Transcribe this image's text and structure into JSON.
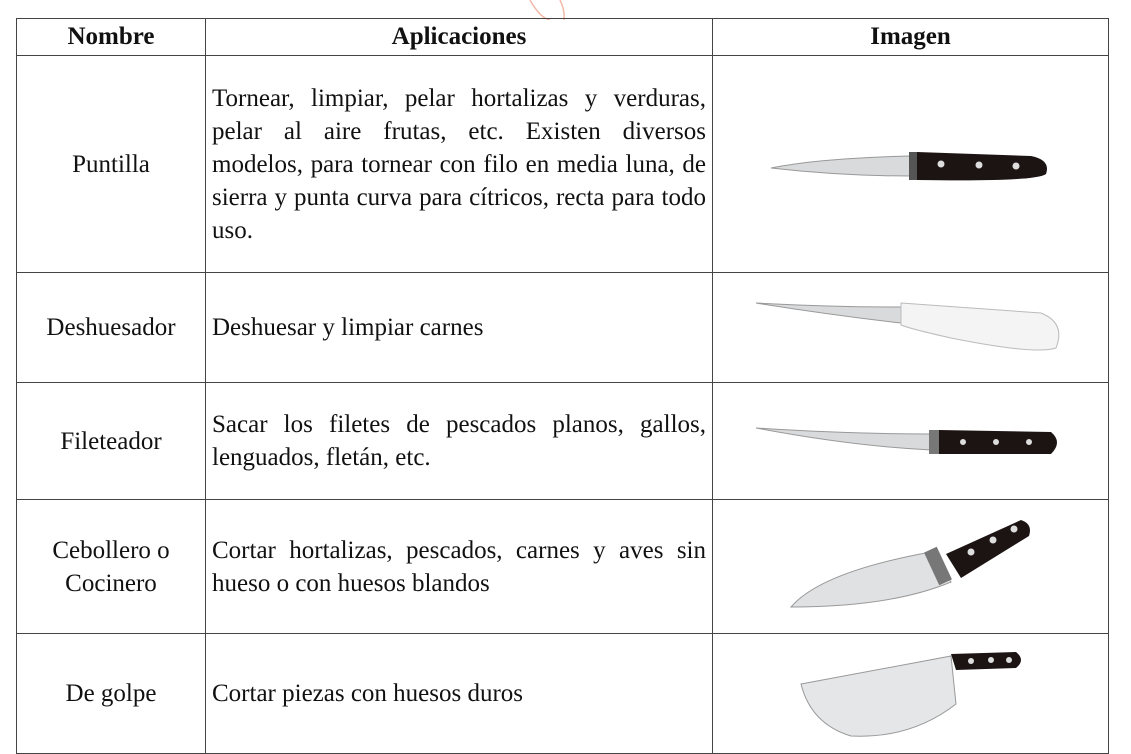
{
  "table": {
    "headers": [
      "Nombre",
      "Aplicaciones",
      "Imagen"
    ],
    "rows": [
      [
        "Puntilla",
        "Tornear, limpiar, pelar hortalizas y verduras, pelar al aire frutas, etc. Existen diversos modelos, para tornear con filo en media luna, de sierra y punta curva para cítricos, recta para todo uso."
      ],
      [
        "Deshuesador",
        "Deshuesar y limpiar carnes"
      ],
      [
        "Fileteador",
        "Sacar los filetes de pescados planos, gallos, lenguados, fletán, etc."
      ],
      [
        "Cebollero o Cocinero",
        "Cortar hortalizas, pescados, carnes y aves sin hueso o con huesos blandos"
      ],
      [
        "De golpe",
        "Cortar piezas con huesos duros"
      ]
    ]
  }
}
